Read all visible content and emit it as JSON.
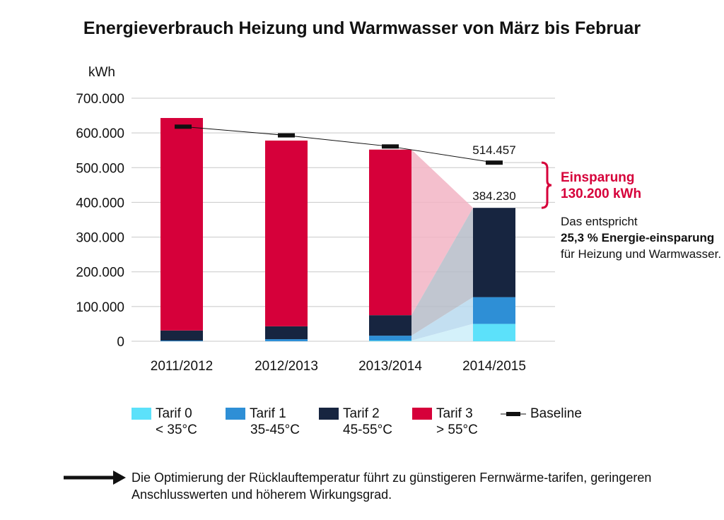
{
  "title": "Energieverbrauch Heizung und Warmwasser von März bis Februar",
  "chart_data": {
    "type": "bar",
    "stacked": true,
    "title": "Energieverbrauch Heizung und Warmwasser von März bis Februar",
    "ylabel": "kWh",
    "xlabel": "",
    "ylim": [
      0,
      700000
    ],
    "ytick_values": [
      0,
      100000,
      200000,
      300000,
      400000,
      500000,
      600000,
      700000
    ],
    "ytick_labels": [
      "0",
      "100.000",
      "200.000",
      "300.000",
      "400.000",
      "500.000",
      "600.000",
      "700.000"
    ],
    "grid": true,
    "categories": [
      "2011/2012",
      "2012/2013",
      "2013/2014",
      "2014/2015"
    ],
    "series": [
      {
        "name": "Tarif 0",
        "sub": "< 35°C",
        "color": "#5ce1fa",
        "values": [
          0,
          0,
          2000,
          50000
        ]
      },
      {
        "name": "Tarif 1",
        "sub": "35-45°C",
        "color": "#2e8fd6",
        "values": [
          2000,
          6000,
          14000,
          77000
        ]
      },
      {
        "name": "Tarif 2",
        "sub": "45-55°C",
        "color": "#172540",
        "values": [
          29000,
          37000,
          59000,
          257230
        ]
      },
      {
        "name": "Tarif 3",
        "sub": "> 55°C",
        "color": "#d6003a",
        "values": [
          612000,
          535000,
          477000,
          0
        ]
      }
    ],
    "baseline": {
      "name": "Baseline",
      "values": [
        618000,
        593000,
        561000,
        514457
      ]
    },
    "annotations": {
      "baseline_last_label": "514.457",
      "total_last_label": "384.230",
      "savings_title": "Einsparung",
      "savings_value": "130.200 kWh"
    },
    "legend_position": "bottom"
  },
  "note": {
    "line1": "Das entspricht",
    "bold": "25,3 % Energie-einsparung",
    "rest": " für Heizung und Warmwasser."
  },
  "footer": {
    "text": "Die Optimierung der Rücklauftemperatur führt zu günstigeren Fernwärme-tarifen, geringeren Anschlusswerten und höherem Wirkungsgrad."
  },
  "colors": {
    "accent": "#d6003a",
    "grid": "#c8c8c8"
  }
}
